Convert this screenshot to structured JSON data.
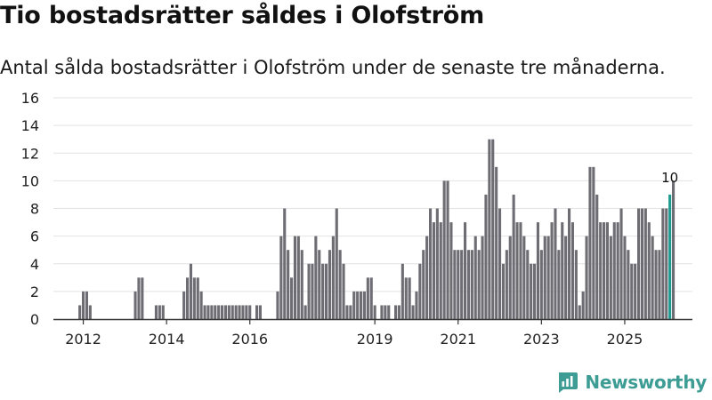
{
  "header": {
    "title": "Tio bostadsrätter såldes i Olofström",
    "subtitle": "Antal sålda bostadsrätter i Olofström under de senaste tre månaderna."
  },
  "brand": {
    "name": "Newsworthy",
    "icon": "newsworthy-logo-icon",
    "color": "#3d9c94"
  },
  "colors": {
    "bar": "#6e6d73",
    "highlight": "#1f9a90",
    "grid": "#e2e2e2",
    "axis": "#333333"
  },
  "chart_data": {
    "type": "bar",
    "title": "Tio bostadsrätter såldes i Olofström",
    "xlabel": "",
    "ylabel": "",
    "ylim": [
      0,
      16
    ],
    "yticks": [
      0,
      2,
      4,
      6,
      8,
      10,
      12,
      14,
      16
    ],
    "xticks": [
      {
        "label": "2012",
        "index": 5
      },
      {
        "label": "2014",
        "index": 29
      },
      {
        "label": "2016",
        "index": 53
      },
      {
        "label": "2019",
        "index": 89
      },
      {
        "label": "2021",
        "index": 113
      },
      {
        "label": "2023",
        "index": 137
      },
      {
        "label": "2025",
        "index": 161
      }
    ],
    "highlight_label": "10",
    "values": [
      0,
      0,
      0,
      0,
      1,
      2,
      2,
      1,
      0,
      0,
      0,
      0,
      0,
      0,
      0,
      0,
      0,
      0,
      0,
      0,
      2,
      3,
      3,
      0,
      0,
      0,
      1,
      1,
      1,
      0,
      0,
      0,
      0,
      0,
      2,
      3,
      4,
      3,
      3,
      2,
      1,
      1,
      1,
      1,
      1,
      1,
      1,
      1,
      1,
      1,
      1,
      1,
      1,
      1,
      0,
      1,
      1,
      0,
      0,
      0,
      0,
      2,
      6,
      8,
      5,
      3,
      6,
      6,
      5,
      1,
      4,
      4,
      6,
      5,
      4,
      4,
      5,
      6,
      8,
      5,
      4,
      1,
      1,
      2,
      2,
      2,
      2,
      3,
      3,
      1,
      0,
      1,
      1,
      1,
      0,
      1,
      1,
      4,
      3,
      3,
      1,
      2,
      4,
      5,
      6,
      8,
      7,
      8,
      7,
      10,
      10,
      7,
      5,
      5,
      5,
      7,
      5,
      5,
      6,
      5,
      6,
      9,
      13,
      13,
      11,
      8,
      4,
      5,
      6,
      9,
      7,
      7,
      6,
      5,
      4,
      4,
      7,
      5,
      6,
      6,
      7,
      8,
      5,
      7,
      6,
      8,
      7,
      5,
      1,
      2,
      6,
      11,
      11,
      9,
      7,
      7,
      7,
      6,
      7,
      7,
      8,
      6,
      5,
      4,
      4,
      8,
      8,
      8,
      7,
      6,
      5,
      5,
      8,
      8,
      9,
      10
    ],
    "highlight_index": 174
  }
}
